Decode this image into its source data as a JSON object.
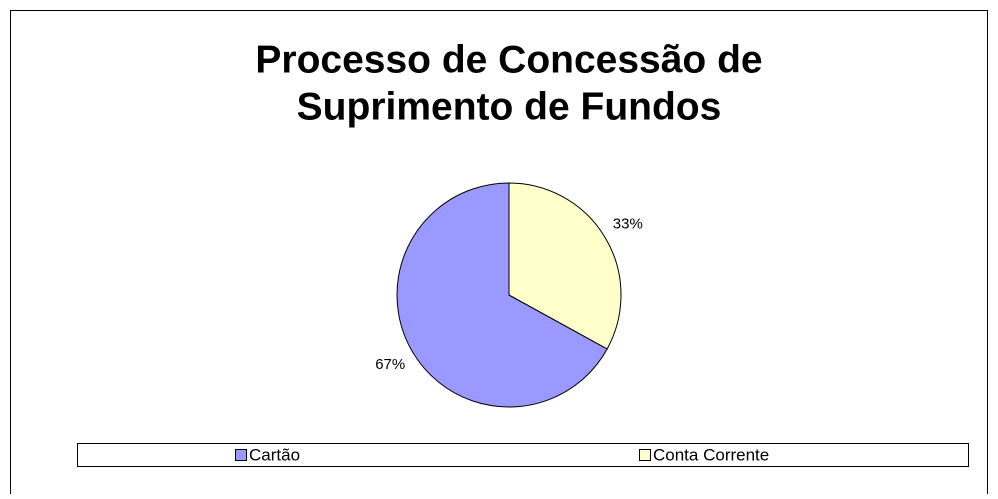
{
  "chart_data": {
    "type": "pie",
    "title": [
      "Processo de Concessão de",
      "Suprimento de Fundos"
    ],
    "categories": [
      "Cartão",
      "Conta Corrente"
    ],
    "values": [
      67,
      33
    ],
    "value_labels": [
      "67%",
      "33%"
    ],
    "colors": [
      "#9999ff",
      "#ffffcc"
    ],
    "legend": "bottom"
  }
}
